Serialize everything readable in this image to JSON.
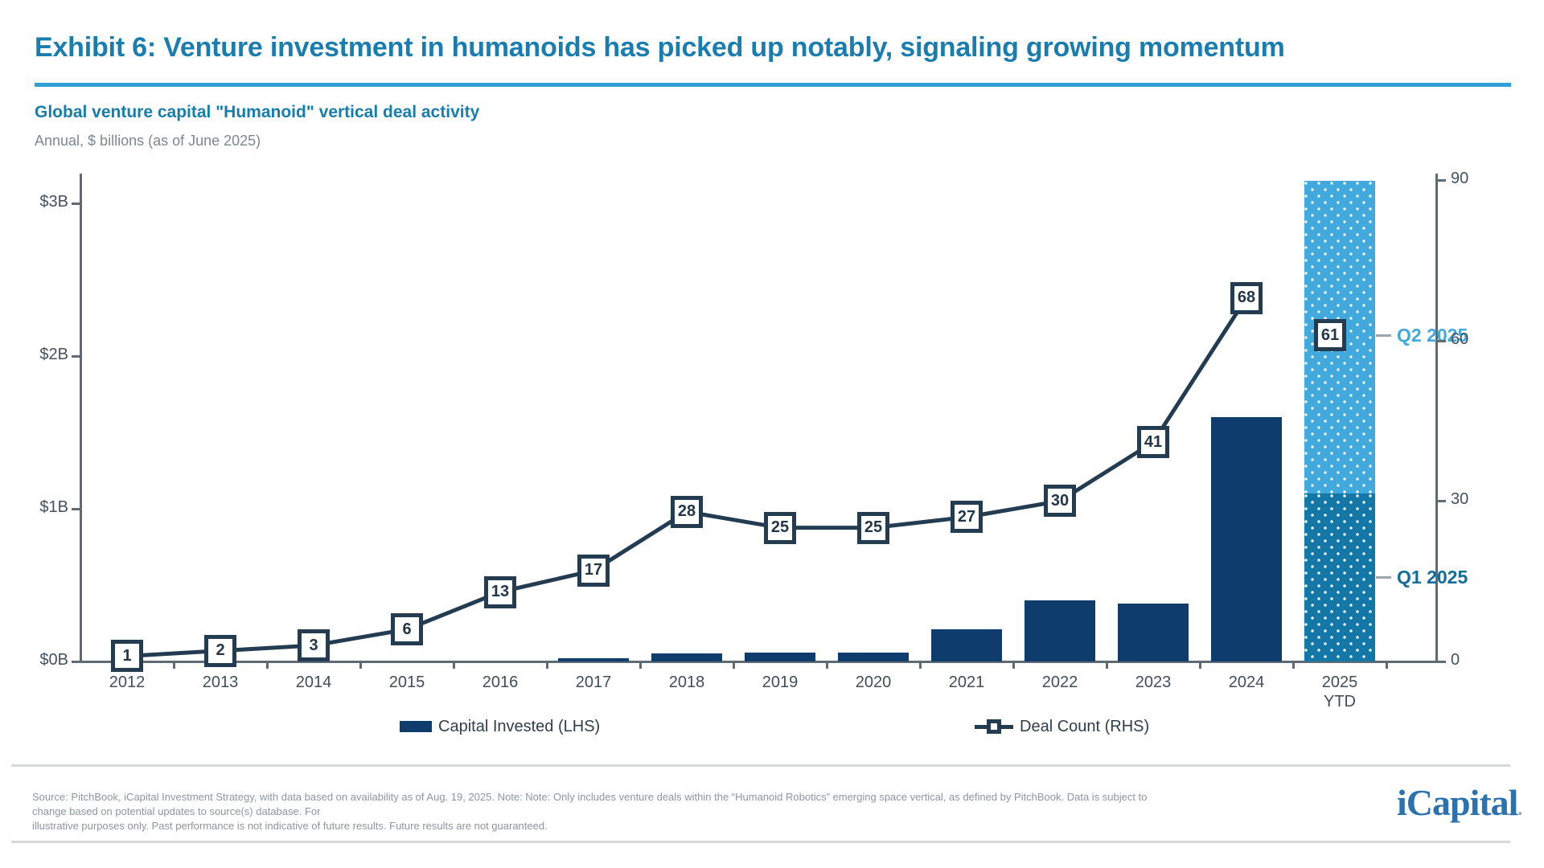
{
  "header": {
    "title": "Exhibit 6: Venture investment in humanoids has picked up notably, signaling growing momentum",
    "subtitle": "Global venture capital \"Humanoid\" vertical deal activity",
    "units_note": "Annual, $ billions (as of June 2025)"
  },
  "chart_data": {
    "type": "bar",
    "subtype": "bar+line combo, dual axis",
    "title": "Global venture capital \"Humanoid\" vertical deal activity",
    "categories": [
      "2012",
      "2013",
      "2014",
      "2015",
      "2016",
      "2017",
      "2018",
      "2019",
      "2020",
      "2021",
      "2022",
      "2023",
      "2024",
      "2025"
    ],
    "x_sub_label": {
      "index": 13,
      "text": "YTD"
    },
    "series": [
      {
        "name": "Capital Invested (LHS)",
        "type": "bar",
        "axis": "left",
        "units": "$ billions",
        "color": "#0e3d6d",
        "values": [
          0,
          0,
          0,
          0,
          0,
          0.02,
          0.05,
          0.06,
          0.06,
          0.21,
          0.4,
          0.38,
          1.6,
          3.15
        ]
      },
      {
        "name": "Deal Count (RHS)",
        "type": "line",
        "axis": "right",
        "color": "#243c52",
        "marker": "square-with-value",
        "values": [
          1,
          2,
          3,
          6,
          13,
          17,
          28,
          25,
          25,
          27,
          30,
          41,
          68,
          61
        ],
        "note": "line drawn through 2012-2024; 2025 YTD value 61 shown as isolated marker on stacked bar"
      }
    ],
    "stacked_2025": {
      "category": "2025 YTD",
      "q1_label": "Q1 2025",
      "q1_value_billions": 1.1,
      "q1_color": "#1478a7",
      "q2_label": "Q2 2025",
      "q2_value_billions": 2.05,
      "q2_color": "#41a9dc",
      "pattern": "white dots"
    },
    "left_axis": {
      "ticks": [
        {
          "label": "$0B",
          "value": 0
        },
        {
          "label": "$1B",
          "value": 1
        },
        {
          "label": "$2B",
          "value": 2
        },
        {
          "label": "$3B",
          "value": 3
        }
      ],
      "range": [
        0,
        3.2
      ]
    },
    "right_axis": {
      "ticks": [
        {
          "label": "0",
          "value": 0
        },
        {
          "label": "30",
          "value": 30
        },
        {
          "label": "60",
          "value": 60
        },
        {
          "label": "90",
          "value": 90
        }
      ],
      "range": [
        0,
        92
      ]
    },
    "legend_position": "bottom",
    "grid": false
  },
  "legend": {
    "capital_label": "Capital Invested (LHS)",
    "deal_count_label": "Deal Count (RHS)"
  },
  "footer": {
    "source_line1": "Source: PitchBook, iCapital Investment Strategy, with data based on availability as of Aug. 19, 2025. Note: Note: Only includes venture deals within the “Humanoid Robotics” emerging space vertical, as defined by PitchBook. Data is subject to change based on potential updates to source(s) database. For",
    "source_line2": "illustrative purposes only. Past performance is not indicative of future results. Future results are not guaranteed.",
    "logo_text": "iCapital",
    "logo_dot": "."
  },
  "colors": {
    "title_teal": "#1a7db0",
    "rule_blue": "#2f9fd6",
    "bar_navy": "#0e3d6d",
    "line_navy": "#243c52",
    "q1_blue": "#1478a7",
    "q2_blue": "#41a9dc",
    "axis_gray": "#5f6b74",
    "footer_gray": "#8d969d",
    "logo_blue": "#2c72ae"
  }
}
